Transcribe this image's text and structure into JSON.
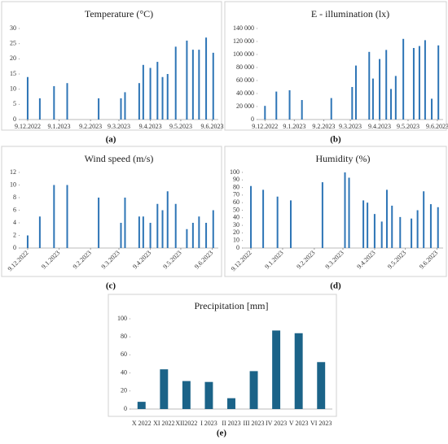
{
  "chart_data": [
    {
      "type": "date-bar",
      "title": "Temperature (°C)",
      "panel_label": "(a)",
      "color": "#2e75b6",
      "x": [
        "2022-12-09",
        "2022-12-21",
        "2023-01-04",
        "2023-01-17",
        "2023-02-17",
        "2023-03-11",
        "2023-03-15",
        "2023-03-29",
        "2023-04-02",
        "2023-04-09",
        "2023-04-16",
        "2023-04-21",
        "2023-04-26",
        "2023-05-04",
        "2023-05-15",
        "2023-05-21",
        "2023-05-27",
        "2023-06-03",
        "2023-06-10"
      ],
      "values": [
        14,
        7,
        11,
        12,
        7,
        7,
        9,
        12,
        18,
        17,
        19,
        14,
        15,
        24,
        26,
        23,
        23,
        27,
        22
      ],
      "xlim": [
        "2022-12-01",
        "2023-06-15"
      ],
      "xticks": [
        {
          "value": "2022-12-09",
          "label": "9.12.2022"
        },
        {
          "value": "2023-01-09",
          "label": "9.1.2023"
        },
        {
          "value": "2023-02-09",
          "label": "9.2.2023"
        },
        {
          "value": "2023-03-09",
          "label": "9.3.2023"
        },
        {
          "value": "2023-04-09",
          "label": "9.4.2023"
        },
        {
          "value": "2023-05-09",
          "label": "9.5.2023"
        },
        {
          "value": "2023-06-09",
          "label": "9.6.2023"
        }
      ],
      "ylim": [
        0,
        30
      ],
      "yticks": [
        0,
        5,
        10,
        15,
        20,
        25,
        30
      ]
    },
    {
      "type": "date-bar",
      "title": "E - illumination (lx)",
      "panel_label": "(b)",
      "color": "#2e75b6",
      "x": [
        "2022-12-09",
        "2022-12-21",
        "2023-01-04",
        "2023-01-17",
        "2023-02-17",
        "2023-03-11",
        "2023-03-15",
        "2023-03-29",
        "2023-04-02",
        "2023-04-09",
        "2023-04-16",
        "2023-04-21",
        "2023-04-26",
        "2023-05-04",
        "2023-05-15",
        "2023-05-21",
        "2023-05-27",
        "2023-06-03",
        "2023-06-10"
      ],
      "values": [
        21000,
        43000,
        45000,
        30000,
        33000,
        50000,
        83000,
        104000,
        63000,
        93000,
        107000,
        47000,
        67000,
        124000,
        110000,
        113000,
        122000,
        32000,
        114000
      ],
      "xlim": [
        "2022-12-01",
        "2023-06-15"
      ],
      "xticks": [
        {
          "value": "2022-12-09",
          "label": "9.12.2022"
        },
        {
          "value": "2023-01-09",
          "label": "9.1.2023"
        },
        {
          "value": "2023-02-09",
          "label": "9.2.2023"
        },
        {
          "value": "2023-03-09",
          "label": "9.3.2023"
        },
        {
          "value": "2023-04-09",
          "label": "9.4.2023"
        },
        {
          "value": "2023-05-09",
          "label": "9.5.2023"
        },
        {
          "value": "2023-06-09",
          "label": "9.6.2023"
        }
      ],
      "ylim": [
        0,
        140000
      ],
      "yticks": [
        0,
        {
          "value": 20000,
          "label": "20 000"
        },
        {
          "value": 40000,
          "label": "40 000"
        },
        {
          "value": 60000,
          "label": "60 000"
        },
        {
          "value": 80000,
          "label": "80 000"
        },
        {
          "value": 100000,
          "label": "100 000"
        },
        {
          "value": 120000,
          "label": "120 000"
        },
        {
          "value": 140000,
          "label": "140 000"
        }
      ]
    },
    {
      "type": "date-bar",
      "title": "Wind speed (m/s)",
      "panel_label": "(c)",
      "color": "#2e75b6",
      "x": [
        "2022-12-09",
        "2022-12-21",
        "2023-01-04",
        "2023-01-17",
        "2023-02-17",
        "2023-03-11",
        "2023-03-15",
        "2023-03-29",
        "2023-04-02",
        "2023-04-09",
        "2023-04-16",
        "2023-04-21",
        "2023-04-26",
        "2023-05-04",
        "2023-05-15",
        "2023-05-21",
        "2023-05-27",
        "2023-06-03",
        "2023-06-10"
      ],
      "values": [
        2,
        5,
        10,
        10,
        8,
        4,
        8,
        5,
        5,
        4,
        7,
        6,
        9,
        7,
        3,
        4,
        5,
        4,
        6
      ],
      "xlim": [
        "2022-12-01",
        "2023-06-15"
      ],
      "xticks": [
        {
          "value": "2022-12-09",
          "label": "9.12.2022"
        },
        {
          "value": "2023-01-09",
          "label": "9.1.2023"
        },
        {
          "value": "2023-02-09",
          "label": "9.2.2023"
        },
        {
          "value": "2023-03-09",
          "label": "9.3.2023"
        },
        {
          "value": "2023-04-09",
          "label": "9.4.2023"
        },
        {
          "value": "2023-05-09",
          "label": "9.5.2023"
        },
        {
          "value": "2023-06-09",
          "label": "9.6.2023"
        }
      ],
      "ylim": [
        0,
        12
      ],
      "yticks": [
        0,
        2,
        4,
        6,
        8,
        10,
        12
      ]
    },
    {
      "type": "date-bar",
      "title": "Humidity (%)",
      "panel_label": "(d)",
      "color": "#2e75b6",
      "x": [
        "2022-12-09",
        "2022-12-21",
        "2023-01-04",
        "2023-01-17",
        "2023-02-17",
        "2023-03-11",
        "2023-03-15",
        "2023-03-29",
        "2023-04-02",
        "2023-04-09",
        "2023-04-16",
        "2023-04-21",
        "2023-04-26",
        "2023-05-04",
        "2023-05-15",
        "2023-05-21",
        "2023-05-27",
        "2023-06-03",
        "2023-06-10"
      ],
      "values": [
        82,
        77,
        68,
        63,
        87,
        100,
        93,
        63,
        60,
        45,
        35,
        77,
        56,
        41,
        39,
        50,
        75,
        58,
        54
      ],
      "xlim": [
        "2022-12-01",
        "2023-06-15"
      ],
      "xticks": [
        {
          "value": "2022-12-09",
          "label": "9.12.2022"
        },
        {
          "value": "2023-01-09",
          "label": "9.1.2023"
        },
        {
          "value": "2023-02-09",
          "label": "9.2.2023"
        },
        {
          "value": "2023-03-09",
          "label": "9.3.2023"
        },
        {
          "value": "2023-04-09",
          "label": "9.4.2023"
        },
        {
          "value": "2023-05-09",
          "label": "9.5.2023"
        },
        {
          "value": "2023-06-09",
          "label": "9.6.2023"
        }
      ],
      "ylim": [
        0,
        100
      ],
      "yticks": [
        0,
        10,
        20,
        30,
        40,
        50,
        60,
        70,
        80,
        90,
        100
      ]
    },
    {
      "type": "bar",
      "title": "Precipitation [mm]",
      "panel_label": "(e)",
      "color": "#1b6388",
      "categories": [
        "X 2022",
        "XI 2022",
        "XII2022",
        "I 2023",
        "II 2023",
        "III 2023",
        "IV 2023",
        "V 2023",
        "VI 2023"
      ],
      "values": [
        8,
        44,
        31,
        30,
        12,
        42,
        87,
        84,
        52
      ],
      "ylim": [
        0,
        100
      ],
      "yticks": [
        0,
        20,
        40,
        60,
        80,
        100
      ]
    }
  ]
}
